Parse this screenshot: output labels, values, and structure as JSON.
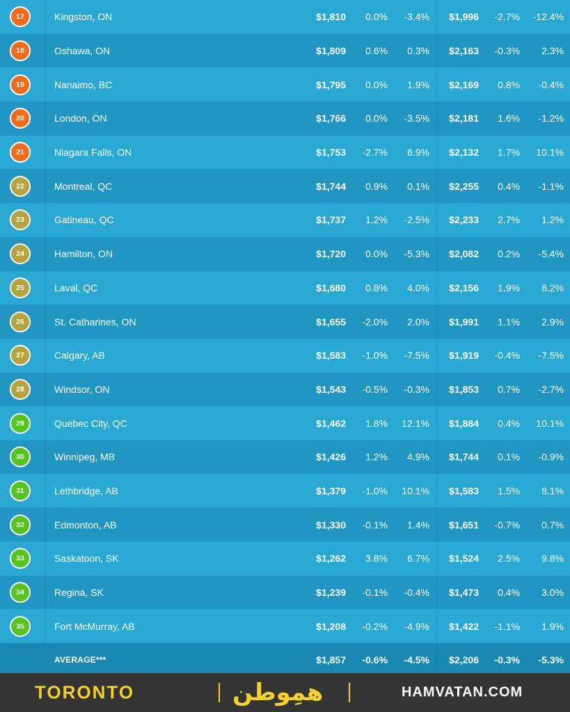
{
  "colors": {
    "badge_orange": "#f26b1d",
    "badge_olive": "#b5a33b",
    "badge_green": "#55c51e",
    "footer_yellow": "#f4d22a"
  },
  "rows": [
    {
      "rank": "17",
      "city": "Kingston, ON",
      "v1": "$1,810",
      "v2": "0.0%",
      "v3": "-3.4%",
      "v4": "$1,996",
      "v5": "-2.7%",
      "v6": "-12.4%",
      "badge": "orange"
    },
    {
      "rank": "18",
      "city": "Oshawa, ON",
      "v1": "$1,809",
      "v2": "0.6%",
      "v3": "0.3%",
      "v4": "$2,163",
      "v5": "-0.3%",
      "v6": "2.3%",
      "badge": "orange"
    },
    {
      "rank": "19",
      "city": "Nanaimo, BC",
      "v1": "$1,795",
      "v2": "0.0%",
      "v3": "1.9%",
      "v4": "$2,169",
      "v5": "0.8%",
      "v6": "-0.4%",
      "badge": "orange"
    },
    {
      "rank": "20",
      "city": "London, ON",
      "v1": "$1,766",
      "v2": "0.0%",
      "v3": "-3.5%",
      "v4": "$2,181",
      "v5": "1.6%",
      "v6": "-1.2%",
      "badge": "orange"
    },
    {
      "rank": "21",
      "city": "Niagara Falls, ON",
      "v1": "$1,753",
      "v2": "-2.7%",
      "v3": "6.9%",
      "v4": "$2,132",
      "v5": "1.7%",
      "v6": "10.1%",
      "badge": "orange"
    },
    {
      "rank": "22",
      "city": "Montreal, QC",
      "v1": "$1,744",
      "v2": "0.9%",
      "v3": "0.1%",
      "v4": "$2,255",
      "v5": "0.4%",
      "v6": "-1.1%",
      "badge": "olive"
    },
    {
      "rank": "23",
      "city": "Gatineau, QC",
      "v1": "$1,737",
      "v2": "1.2%",
      "v3": "-2.5%",
      "v4": "$2,233",
      "v5": "2.7%",
      "v6": "1.2%",
      "badge": "olive"
    },
    {
      "rank": "24",
      "city": "Hamilton, ON",
      "v1": "$1,720",
      "v2": "0.0%",
      "v3": "-5.3%",
      "v4": "$2,082",
      "v5": "0.2%",
      "v6": "-5.4%",
      "badge": "olive"
    },
    {
      "rank": "25",
      "city": "Laval, QC",
      "v1": "$1,680",
      "v2": "0.8%",
      "v3": "4.0%",
      "v4": "$2,156",
      "v5": "1.9%",
      "v6": "8.2%",
      "badge": "olive"
    },
    {
      "rank": "26",
      "city": "St. Catharines, ON",
      "v1": "$1,655",
      "v2": "-2.0%",
      "v3": "2.0%",
      "v4": "$1,991",
      "v5": "1.1%",
      "v6": "2.9%",
      "badge": "olive"
    },
    {
      "rank": "27",
      "city": "Calgary, AB",
      "v1": "$1,583",
      "v2": "-1.0%",
      "v3": "-7.5%",
      "v4": "$1,919",
      "v5": "-0.4%",
      "v6": "-7.5%",
      "badge": "olive"
    },
    {
      "rank": "28",
      "city": "Windsor, ON",
      "v1": "$1,543",
      "v2": "-0.5%",
      "v3": "-0.3%",
      "v4": "$1,853",
      "v5": "0.7%",
      "v6": "-2.7%",
      "badge": "olive"
    },
    {
      "rank": "29",
      "city": "Quebec City, QC",
      "v1": "$1,462",
      "v2": "1.8%",
      "v3": "12.1%",
      "v4": "$1,884",
      "v5": "0.4%",
      "v6": "10.1%",
      "badge": "green"
    },
    {
      "rank": "30",
      "city": "Winnipeg, MB",
      "v1": "$1,426",
      "v2": "1.2%",
      "v3": "4.9%",
      "v4": "$1,744",
      "v5": "0.1%",
      "v6": "-0.9%",
      "badge": "green"
    },
    {
      "rank": "31",
      "city": "Lethbridge, AB",
      "v1": "$1,379",
      "v2": "-1.0%",
      "v3": "10.1%",
      "v4": "$1,583",
      "v5": "1.5%",
      "v6": "8.1%",
      "badge": "green"
    },
    {
      "rank": "32",
      "city": "Edmonton, AB",
      "v1": "$1,330",
      "v2": "-0.1%",
      "v3": "1.4%",
      "v4": "$1,651",
      "v5": "-0.7%",
      "v6": "0.7%",
      "badge": "green"
    },
    {
      "rank": "33",
      "city": "Saskatoon, SK",
      "v1": "$1,262",
      "v2": "3.8%",
      "v3": "6.7%",
      "v4": "$1,524",
      "v5": "2.5%",
      "v6": "9.8%",
      "badge": "green"
    },
    {
      "rank": "34",
      "city": "Regina, SK",
      "v1": "$1,239",
      "v2": "-0.1%",
      "v3": "-0.4%",
      "v4": "$1,473",
      "v5": "0.4%",
      "v6": "3.0%",
      "badge": "green"
    },
    {
      "rank": "35",
      "city": "Fort McMurray, AB",
      "v1": "$1,208",
      "v2": "-0.2%",
      "v3": "-4.9%",
      "v4": "$1,422",
      "v5": "-1.1%",
      "v6": "1.9%",
      "badge": "green"
    }
  ],
  "average": {
    "label": "AVERAGE***",
    "v1": "$1,857",
    "v2": "-0.6%",
    "v3": "-4.5%",
    "v4": "$2,206",
    "v5": "-0.3%",
    "v6": "-5.3%"
  },
  "footer": {
    "city": "TORONTO",
    "logo_text": "همِوطن",
    "site": "HAMVATAN.COM"
  }
}
